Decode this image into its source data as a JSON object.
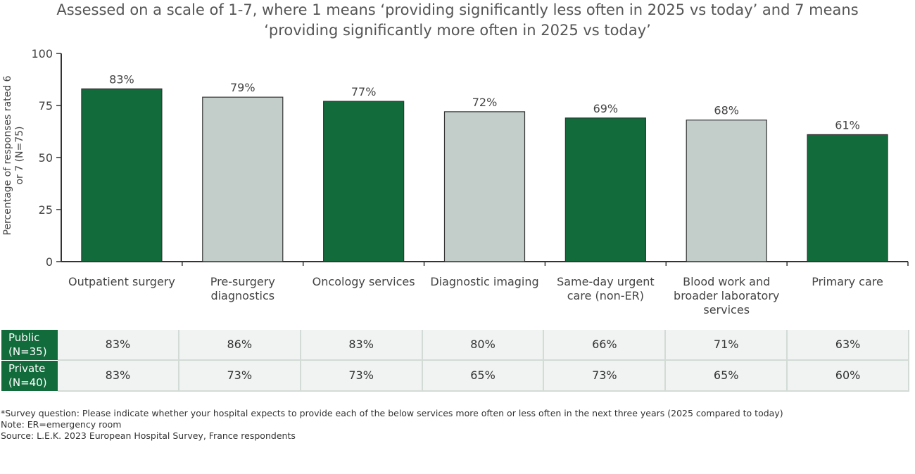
{
  "chart_data": {
    "type": "bar",
    "title": "Assessed on a scale of 1-7, where 1 means ‘providing significantly less often in 2025 vs today’ and 7 means ‘providing significantly more often in 2025 vs today’",
    "ylabel": "Percentage of responses rated 6 or 7 (N=75)",
    "categories": [
      "Outpatient surgery",
      "Pre-surgery diagnostics",
      "Oncology services",
      "Diagnostic imaging",
      "Same-day urgent care (non-ER)",
      "Blood work and broader laboratory services",
      "Primary care"
    ],
    "values": [
      83,
      79,
      77,
      72,
      69,
      68,
      61
    ],
    "value_labels": [
      "83%",
      "79%",
      "77%",
      "72%",
      "69%",
      "68%",
      "61%"
    ],
    "colors": [
      "#116b3b",
      "#c3ceca",
      "#116b3b",
      "#c3ceca",
      "#116b3b",
      "#c3ceca",
      "#116b3b"
    ],
    "ylim": [
      0,
      100
    ],
    "yticks": [
      0,
      25,
      50,
      75,
      100
    ],
    "grid": false
  },
  "table": {
    "rows": [
      {
        "label": "Public (N=35)",
        "cells": [
          "83%",
          "86%",
          "83%",
          "80%",
          "66%",
          "71%",
          "63%"
        ]
      },
      {
        "label": "Private (N=40)",
        "cells": [
          "83%",
          "73%",
          "73%",
          "65%",
          "73%",
          "65%",
          "60%"
        ]
      }
    ]
  },
  "notes": [
    "*Survey question: Please indicate whether your hospital expects to provide each of the below services more often or less often in the next three years (2025 compared to today)",
    "Note: ER=emergency room",
    "Source: L.E.K. 2023 European Hospital Survey, France respondents"
  ]
}
